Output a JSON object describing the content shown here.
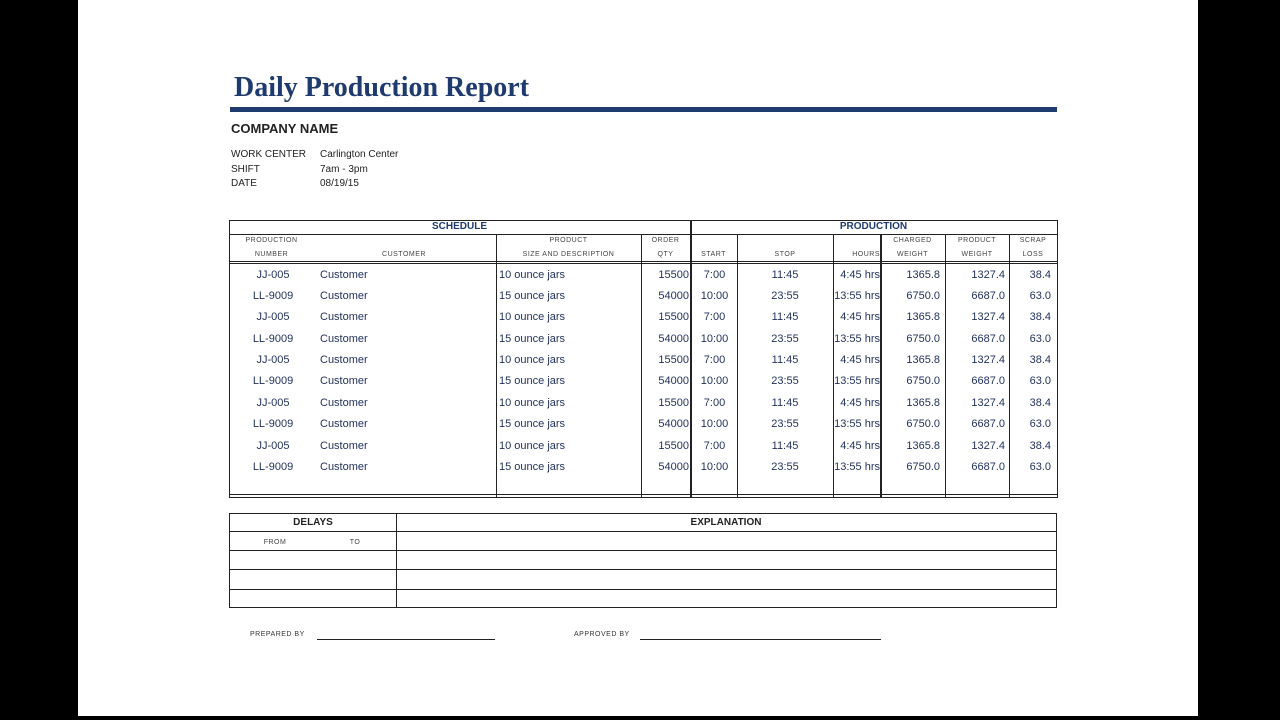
{
  "title": "Daily Production Report",
  "company": "COMPANY NAME",
  "info": [
    {
      "label": "WORK CENTER",
      "value": "Carlington Center"
    },
    {
      "label": "SHIFT",
      "value": "7am - 3pm"
    },
    {
      "label": "DATE",
      "value": "08/19/15"
    }
  ],
  "sections": {
    "schedule": "SCHEDULE",
    "production": "PRODUCTION"
  },
  "headers": {
    "prod_num": [
      "PRODUCTION",
      "NUMBER"
    ],
    "customer": "CUSTOMER",
    "product": [
      "PRODUCT",
      "SIZE AND DESCRIPTION"
    ],
    "order": [
      "ORDER",
      "QTY"
    ],
    "start": "START",
    "stop": "STOP",
    "hours": "HOURS",
    "charged": [
      "CHARGED",
      "WEIGHT"
    ],
    "pweight": [
      "PRODUCT",
      "WEIGHT"
    ],
    "scrap": [
      "SCRAP",
      "LOSS"
    ]
  },
  "rows": [
    [
      "JJ-005",
      "Customer",
      "10 ounce jars",
      "15500",
      "7:00",
      "11:45",
      "4:45 hrs",
      "1365.8",
      "1327.4",
      "38.4"
    ],
    [
      "LL-9009",
      "Customer",
      "15 ounce jars",
      "54000",
      "10:00",
      "23:55",
      "13:55 hrs",
      "6750.0",
      "6687.0",
      "63.0"
    ],
    [
      "JJ-005",
      "Customer",
      "10 ounce jars",
      "15500",
      "7:00",
      "11:45",
      "4:45 hrs",
      "1365.8",
      "1327.4",
      "38.4"
    ],
    [
      "LL-9009",
      "Customer",
      "15 ounce jars",
      "54000",
      "10:00",
      "23:55",
      "13:55 hrs",
      "6750.0",
      "6687.0",
      "63.0"
    ],
    [
      "JJ-005",
      "Customer",
      "10 ounce jars",
      "15500",
      "7:00",
      "11:45",
      "4:45 hrs",
      "1365.8",
      "1327.4",
      "38.4"
    ],
    [
      "LL-9009",
      "Customer",
      "15 ounce jars",
      "54000",
      "10:00",
      "23:55",
      "13:55 hrs",
      "6750.0",
      "6687.0",
      "63.0"
    ],
    [
      "JJ-005",
      "Customer",
      "10 ounce jars",
      "15500",
      "7:00",
      "11:45",
      "4:45 hrs",
      "1365.8",
      "1327.4",
      "38.4"
    ],
    [
      "LL-9009",
      "Customer",
      "15 ounce jars",
      "54000",
      "10:00",
      "23:55",
      "13:55 hrs",
      "6750.0",
      "6687.0",
      "63.0"
    ],
    [
      "JJ-005",
      "Customer",
      "10 ounce jars",
      "15500",
      "7:00",
      "11:45",
      "4:45 hrs",
      "1365.8",
      "1327.4",
      "38.4"
    ],
    [
      "LL-9009",
      "Customer",
      "15 ounce jars",
      "54000",
      "10:00",
      "23:55",
      "13:55 hrs",
      "6750.0",
      "6687.0",
      "63.0"
    ]
  ],
  "delays": {
    "title": "DELAYS",
    "from": "FROM",
    "to": "TO",
    "explanation": "EXPLANATION"
  },
  "signatures": {
    "prepared": "PREPARED BY",
    "approved": "APPROVED BY"
  }
}
